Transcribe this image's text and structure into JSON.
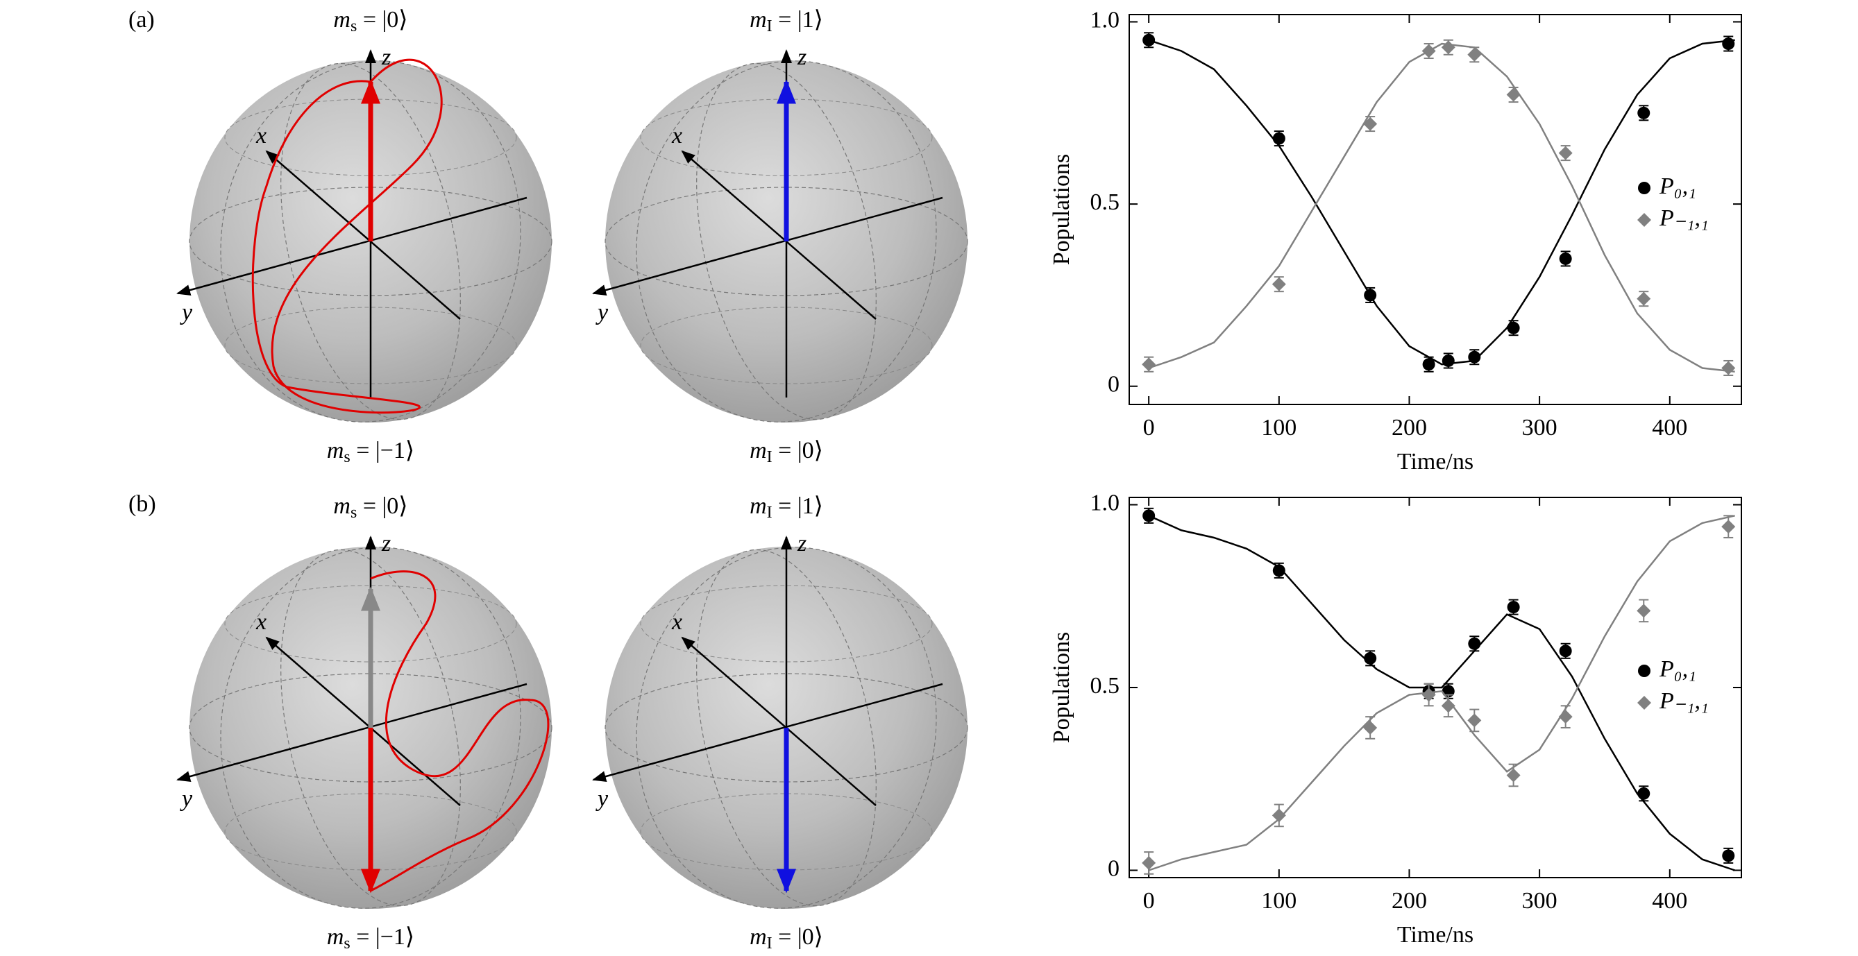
{
  "panels": [
    "(a)",
    "(b)"
  ],
  "axis_labels": [
    "x",
    "y",
    "z"
  ],
  "spheres": [
    {
      "top": {
        "m": "m",
        "sub": "s",
        "ket": " = |0⟩"
      },
      "bottom": {
        "m": "m",
        "sub": "s",
        "ket": " = |−1⟩"
      }
    },
    {
      "top": {
        "m": "m",
        "sub": "I",
        "ket": " = |1⟩"
      },
      "bottom": {
        "m": "m",
        "sub": "I",
        "ket": " = |0⟩"
      }
    },
    {
      "top": {
        "m": "m",
        "sub": "s",
        "ket": " = |0⟩"
      },
      "bottom": {
        "m": "m",
        "sub": "s",
        "ket": " = |−1⟩"
      }
    },
    {
      "top": {
        "m": "m",
        "sub": "I",
        "ket": " = |1⟩"
      },
      "bottom": {
        "m": "m",
        "sub": "I",
        "ket": " = |0⟩"
      }
    }
  ],
  "chart_data": [
    {
      "type": "scatter",
      "x_label": "Time/ns",
      "y_label": "Populations",
      "x": [
        0,
        100,
        170,
        215,
        230,
        250,
        280,
        320,
        380,
        445
      ],
      "fit_x": [
        0,
        25,
        50,
        75,
        100,
        125,
        150,
        175,
        200,
        225,
        250,
        275,
        300,
        325,
        350,
        375,
        400,
        425,
        450
      ],
      "series": [
        {
          "name": "P₀,₁",
          "color": "#000000",
          "marker": "circle",
          "values": [
            0.95,
            0.68,
            0.25,
            0.06,
            0.07,
            0.08,
            0.16,
            0.35,
            0.75,
            0.94
          ],
          "errors": [
            0.02,
            0.02,
            0.02,
            0.02,
            0.02,
            0.02,
            0.02,
            0.02,
            0.02,
            0.02
          ],
          "fit": [
            0.95,
            0.92,
            0.87,
            0.77,
            0.66,
            0.52,
            0.37,
            0.22,
            0.11,
            0.06,
            0.07,
            0.16,
            0.3,
            0.47,
            0.65,
            0.8,
            0.9,
            0.94,
            0.95
          ]
        },
        {
          "name": "P₋₁,₁",
          "color": "#808080",
          "marker": "diamond",
          "values": [
            0.06,
            0.28,
            0.72,
            0.92,
            0.93,
            0.91,
            0.8,
            0.64,
            0.24,
            0.05
          ],
          "errors": [
            0.02,
            0.02,
            0.02,
            0.02,
            0.02,
            0.02,
            0.02,
            0.02,
            0.02,
            0.02
          ],
          "fit": [
            0.05,
            0.08,
            0.12,
            0.22,
            0.33,
            0.48,
            0.63,
            0.78,
            0.89,
            0.94,
            0.93,
            0.85,
            0.72,
            0.55,
            0.36,
            0.2,
            0.1,
            0.05,
            0.04
          ]
        }
      ],
      "xlim": [
        -15,
        455
      ],
      "xticks": [
        0,
        100,
        200,
        300,
        400
      ],
      "ylim": [
        -0.05,
        1.02
      ],
      "yticks": [
        0,
        0.5,
        {
          "value": 1,
          "label": "1.0"
        }
      ],
      "legend": "right"
    },
    {
      "type": "scatter",
      "x_label": "Time/ns",
      "y_label": "Populations",
      "x": [
        0,
        100,
        170,
        215,
        230,
        250,
        280,
        320,
        380,
        445
      ],
      "fit_x": [
        0,
        25,
        50,
        75,
        100,
        125,
        150,
        175,
        200,
        225,
        250,
        275,
        300,
        325,
        350,
        375,
        400,
        425,
        450
      ],
      "series": [
        {
          "name": "P₀,₁",
          "color": "#000000",
          "marker": "circle",
          "values": [
            0.97,
            0.82,
            0.58,
            0.49,
            0.49,
            0.62,
            0.72,
            0.6,
            0.21,
            0.04
          ],
          "errors": [
            0.02,
            0.02,
            0.02,
            0.02,
            0.02,
            0.02,
            0.02,
            0.02,
            0.02,
            0.02
          ],
          "fit": [
            0.97,
            0.93,
            0.91,
            0.88,
            0.83,
            0.73,
            0.63,
            0.55,
            0.5,
            0.5,
            0.6,
            0.7,
            0.66,
            0.53,
            0.36,
            0.21,
            0.1,
            0.03,
            0.0
          ]
        },
        {
          "name": "P₋₁,₁",
          "color": "#808080",
          "marker": "diamond",
          "values": [
            0.02,
            0.15,
            0.39,
            0.48,
            0.45,
            0.41,
            0.26,
            0.42,
            0.71,
            0.94
          ],
          "errors": [
            0.03,
            0.03,
            0.03,
            0.03,
            0.03,
            0.03,
            0.03,
            0.03,
            0.03,
            0.03
          ],
          "fit": [
            0.0,
            0.03,
            0.05,
            0.07,
            0.14,
            0.24,
            0.34,
            0.43,
            0.48,
            0.49,
            0.37,
            0.27,
            0.33,
            0.47,
            0.64,
            0.79,
            0.9,
            0.95,
            0.97
          ]
        }
      ],
      "xlim": [
        -15,
        455
      ],
      "xticks": [
        0,
        100,
        200,
        300,
        400
      ],
      "ylim": [
        -0.02,
        1.02
      ],
      "yticks": [
        0,
        0.5,
        {
          "value": 1,
          "label": "1.0"
        }
      ],
      "legend": "right"
    }
  ]
}
